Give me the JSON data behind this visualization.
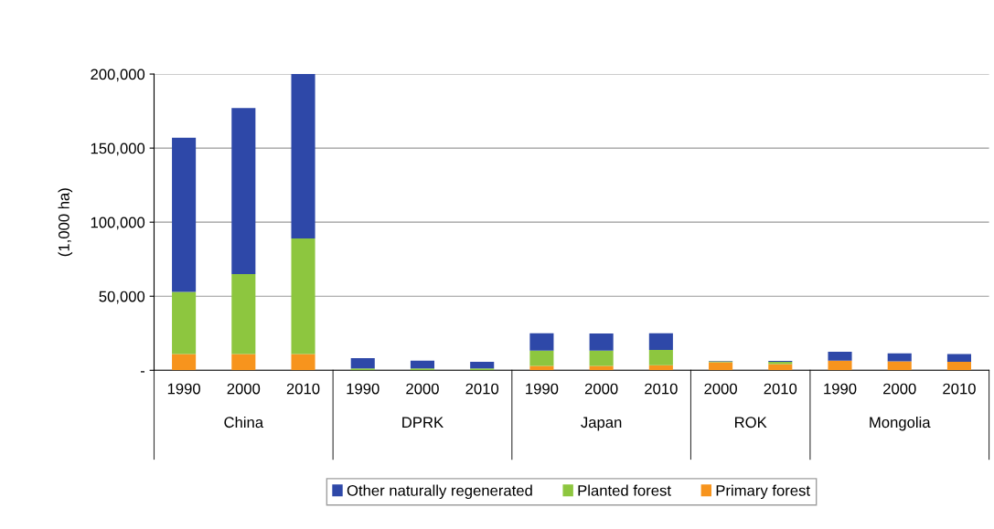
{
  "chart_data": {
    "type": "bar",
    "stacked": true,
    "ylabel": "(1,000 ha)",
    "categories": [
      "1990",
      "2000",
      "2010",
      "1990",
      "2000",
      "2010",
      "1990",
      "2000",
      "2010",
      "2000",
      "2010",
      "1990",
      "2000",
      "2010"
    ],
    "annotations": [
      "China",
      "DPRK",
      "Japan",
      "ROK",
      "Mongolia"
    ],
    "series": [
      {
        "name": "Primary forest",
        "color": "#f7941d",
        "values": [
          11000,
          11000,
          11000,
          0,
          0,
          0,
          3000,
          3000,
          3500,
          5500,
          4200,
          6500,
          6000,
          5800
        ]
      },
      {
        "name": "Planted forest",
        "color": "#8dc63f",
        "values": [
          42000,
          54000,
          78000,
          1200,
          1200,
          1200,
          10300,
          10300,
          10300,
          600,
          1500,
          0,
          0,
          0
        ]
      },
      {
        "name": "Other naturally regenerated",
        "color": "#2e48a8",
        "values": [
          104000,
          112000,
          111000,
          7000,
          5300,
          4500,
          11700,
          11500,
          11200,
          300,
          600,
          6000,
          5500,
          5200
        ]
      }
    ],
    "ylim": [
      0,
      200000
    ],
    "yticks": [
      {
        "value": 0,
        "label": "-"
      },
      {
        "value": 50000,
        "label": "50,000"
      },
      {
        "value": 100000,
        "label": "100,000"
      },
      {
        "value": 150000,
        "label": "150,000"
      },
      {
        "value": 200000,
        "label": "200,000"
      }
    ],
    "grid": "y",
    "legend": "bottom"
  }
}
